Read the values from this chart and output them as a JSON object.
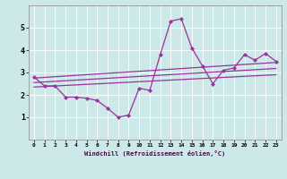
{
  "xlabel": "Windchill (Refroidissement éolien,°C)",
  "background_color": "#cce8e8",
  "grid_color": "#aacccc",
  "line_color": "#993399",
  "xlim": [
    -0.5,
    23.5
  ],
  "ylim": [
    0,
    6
  ],
  "yticks": [
    1,
    2,
    3,
    4,
    5
  ],
  "xticks": [
    0,
    1,
    2,
    3,
    4,
    5,
    6,
    7,
    8,
    9,
    10,
    11,
    12,
    13,
    14,
    15,
    16,
    17,
    18,
    19,
    20,
    21,
    22,
    23
  ],
  "main_x": [
    0,
    1,
    2,
    3,
    4,
    5,
    6,
    7,
    8,
    9,
    10,
    11,
    12,
    13,
    14,
    15,
    16,
    17,
    18,
    19,
    20,
    21,
    22,
    23
  ],
  "main_y": [
    2.8,
    2.4,
    2.4,
    1.9,
    1.9,
    1.85,
    1.75,
    1.4,
    1.0,
    1.1,
    2.3,
    2.2,
    3.8,
    5.3,
    5.4,
    4.1,
    3.3,
    2.5,
    3.1,
    3.2,
    3.8,
    3.55,
    3.85,
    3.5
  ],
  "line1_x": [
    0,
    23
  ],
  "line1_y": [
    2.75,
    3.45
  ],
  "line2_x": [
    0,
    23
  ],
  "line2_y": [
    2.55,
    3.18
  ],
  "line3_x": [
    0,
    23
  ],
  "line3_y": [
    2.35,
    2.9
  ]
}
